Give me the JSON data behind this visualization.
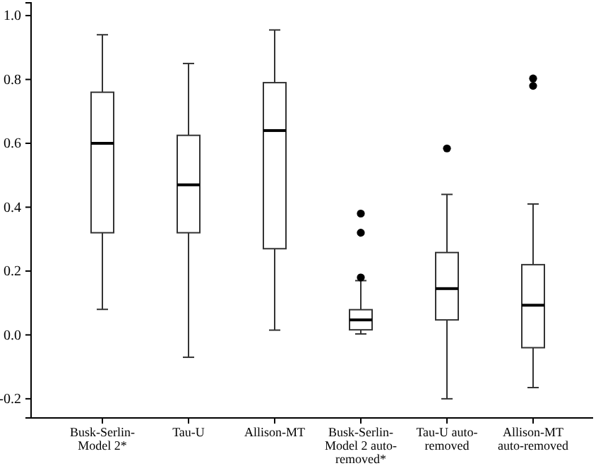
{
  "chart_data": {
    "type": "box",
    "categories": [
      "Busk-Serlin-Model 2*",
      "Tau-U",
      "Allison-MT",
      "Busk-Serlin-Model 2 auto-removed*",
      "Tau-U auto-removed",
      "Allison-MT auto-removed"
    ],
    "boxes": [
      {
        "low": 0.08,
        "q1": 0.32,
        "median": 0.6,
        "q3": 0.76,
        "high": 0.94
      },
      {
        "low": -0.07,
        "q1": 0.32,
        "median": 0.47,
        "q3": 0.625,
        "high": 0.85
      },
      {
        "low": 0.015,
        "q1": 0.27,
        "median": 0.64,
        "q3": 0.79,
        "high": 0.955
      },
      {
        "low": 0.003,
        "q1": 0.016,
        "median": 0.047,
        "q3": 0.079,
        "high": 0.17,
        "outliers": [
          0.18,
          0.32,
          0.38
        ]
      },
      {
        "low": -0.2,
        "q1": 0.047,
        "median": 0.145,
        "q3": 0.258,
        "high": 0.44,
        "outliers": [
          0.584
        ]
      },
      {
        "low": -0.165,
        "q1": -0.04,
        "median": 0.093,
        "q3": 0.22,
        "high": 0.41,
        "outliers": [
          0.78,
          0.803
        ]
      }
    ],
    "ylim": [
      -0.26,
      1.04
    ],
    "yticks": [
      {
        "value": -0.2,
        "label": "-0.2"
      },
      {
        "value": 0,
        "label": "0.0"
      },
      {
        "value": 0.2,
        "label": "0.2"
      },
      {
        "value": 0.4,
        "label": "0.4"
      },
      {
        "value": 0.6,
        "label": "0.6"
      },
      {
        "value": 0.8,
        "label": "0.8"
      },
      {
        "value": 1,
        "label": "1.0"
      }
    ],
    "grid": false
  }
}
